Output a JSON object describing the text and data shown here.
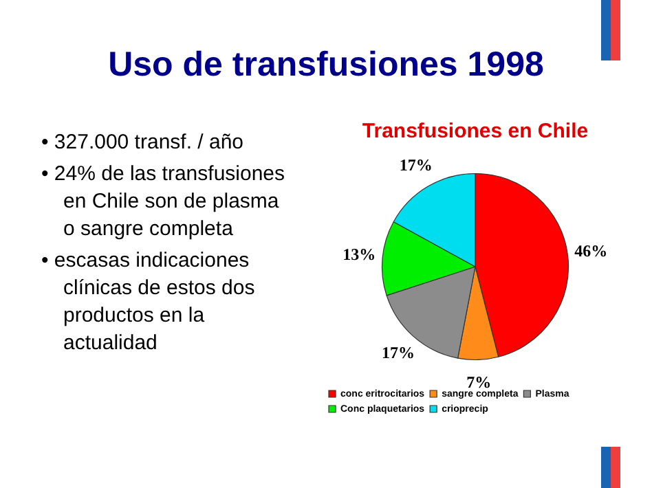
{
  "chart_data": {
    "type": "pie",
    "title": "Uso de transfusiones 1998",
    "subtitle": "Transfusiones en Chile",
    "categories": [
      "conc eritrocitarios",
      "sangre completa",
      "Plasma",
      "Conc plaquetarios",
      "crioprecip"
    ],
    "values": [
      46,
      7,
      17,
      13,
      17
    ],
    "colors": [
      "#ff0000",
      "#ff8c1a",
      "#8c8c8c",
      "#00ee00",
      "#00ddee"
    ],
    "value_labels": [
      "46%",
      "7%",
      "17%",
      "13%",
      "17%"
    ],
    "legend": "bottom",
    "annotations": [
      "• 327.000 transf. / año",
      "• 24% de las transfusiones en Chile son de plasma o sangre completa",
      "• escasas indicaciones clínicas de estos dos productos en la actualidad"
    ]
  }
}
